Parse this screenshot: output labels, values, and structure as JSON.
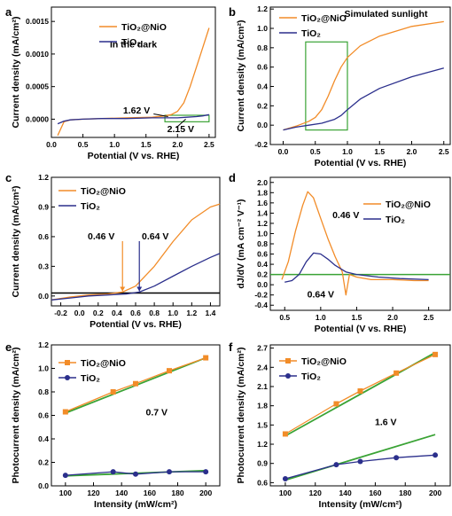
{
  "chart_data": [
    {
      "id": "a",
      "type": "line",
      "panel_label": "a",
      "xlabel": "Potential (V vs. RHE)",
      "ylabel": "Current density (mA/cm²)",
      "xlim": [
        0,
        2.6
      ],
      "ylim": [
        -0.00028,
        0.00172
      ],
      "xticks": [
        0.0,
        0.5,
        1.0,
        1.5,
        2.0,
        2.5
      ],
      "xtick_labels": [
        "0.0",
        "0.5",
        "1.0",
        "1.5",
        "2.0",
        "2.5"
      ],
      "yticks": [
        0,
        0.0005,
        0.001,
        0.0015
      ],
      "ytick_labels": [
        "0.0000",
        "0.0005",
        "0.0010",
        "0.0015"
      ],
      "series": [
        {
          "name": "TiO₂@NiO",
          "color": "#f28c28",
          "x": [
            0.1,
            0.2,
            0.3,
            0.5,
            0.8,
            1.2,
            1.6,
            1.8,
            1.9,
            2.0,
            2.1,
            2.2,
            2.3,
            2.4,
            2.5
          ],
          "y": [
            -0.00025,
            -4e-05,
            -1e-05,
            0.0,
            1e-05,
            2e-05,
            3e-05,
            5e-05,
            7e-05,
            0.00012,
            0.00025,
            0.0005,
            0.0008,
            0.0011,
            0.0014
          ]
        },
        {
          "name": "TiO₂",
          "color": "#2b2f8c",
          "x": [
            0.1,
            0.2,
            0.3,
            0.5,
            0.8,
            1.2,
            1.6,
            2.0,
            2.15,
            2.3,
            2.4,
            2.5
          ],
          "y": [
            -7e-05,
            -3e-05,
            -1e-05,
            0.0,
            1e-05,
            1e-05,
            2e-05,
            2e-05,
            3e-05,
            4e-05,
            5e-05,
            7e-05
          ]
        }
      ],
      "annotations": [
        {
          "text": "In the dark",
          "x": 1.3,
          "y": 0.0011
        },
        {
          "text": "1.62 V",
          "x": 1.35,
          "y": 9e-05
        },
        {
          "text": "2.15 V",
          "x": 2.05,
          "y": -0.0002
        }
      ],
      "highlight_box": {
        "x": [
          1.8,
          2.5
        ],
        "y": [
          -4e-05,
          6e-05
        ],
        "color": "#3aa335"
      }
    },
    {
      "id": "b",
      "type": "line",
      "panel_label": "b",
      "xlabel": "Potential (V vs. RHE)",
      "ylabel": "Current density (mA/cm²)",
      "xlim": [
        -0.2,
        2.6
      ],
      "ylim": [
        -0.2,
        1.22
      ],
      "xticks": [
        0.0,
        0.5,
        1.0,
        1.5,
        2.0,
        2.5
      ],
      "xtick_labels": [
        "0.0",
        "0.5",
        "1.0",
        "1.5",
        "2.0",
        "2.5"
      ],
      "yticks": [
        -0.2,
        0.0,
        0.2,
        0.4,
        0.6,
        0.8,
        1.0,
        1.2
      ],
      "ytick_labels": [
        "-0.2",
        "0.0",
        "0.2",
        "0.4",
        "0.6",
        "0.8",
        "1.0",
        "1.2"
      ],
      "series": [
        {
          "name": "TiO₂@NiO",
          "color": "#f28c28",
          "x": [
            0.0,
            0.2,
            0.4,
            0.5,
            0.6,
            0.7,
            0.8,
            0.9,
            1.0,
            1.2,
            1.5,
            2.0,
            2.5
          ],
          "y": [
            -0.05,
            -0.01,
            0.04,
            0.08,
            0.16,
            0.3,
            0.46,
            0.6,
            0.7,
            0.82,
            0.92,
            1.02,
            1.07
          ]
        },
        {
          "name": "TiO₂",
          "color": "#2b2f8c",
          "x": [
            0.0,
            0.2,
            0.4,
            0.6,
            0.8,
            0.9,
            1.0,
            1.2,
            1.5,
            2.0,
            2.5
          ],
          "y": [
            -0.05,
            -0.02,
            0.0,
            0.02,
            0.06,
            0.1,
            0.16,
            0.27,
            0.38,
            0.5,
            0.59
          ]
        }
      ],
      "annotations": [
        {
          "text": "Simulated sunlight",
          "x": 1.6,
          "y": 1.12
        }
      ],
      "highlight_box": {
        "x": [
          0.35,
          1.0
        ],
        "y": [
          -0.05,
          0.86
        ],
        "color": "#3aa335"
      }
    },
    {
      "id": "c",
      "type": "line",
      "panel_label": "c",
      "xlabel": "Potential (V vs. RHE)",
      "ylabel": "Current density (mA/cm²)",
      "xlim": [
        -0.3,
        1.5
      ],
      "ylim": [
        -0.1,
        1.2
      ],
      "xticks": [
        -0.2,
        0.0,
        0.2,
        0.4,
        0.6,
        0.8,
        1.0,
        1.2,
        1.4
      ],
      "xtick_labels": [
        "-0.2",
        "0.0",
        "0.2",
        "0.4",
        "0.6",
        "0.8",
        "1.0",
        "1.2",
        "1.4"
      ],
      "yticks": [
        0.0,
        0.3,
        0.6,
        0.9,
        1.2
      ],
      "ytick_labels": [
        "0.0",
        "0.3",
        "0.6",
        "0.9",
        "1.2"
      ],
      "series": [
        {
          "name": "TiO₂@NiO",
          "color": "#f28c28",
          "x": [
            -0.3,
            -0.1,
            0.1,
            0.3,
            0.46,
            0.6,
            0.8,
            1.0,
            1.2,
            1.4,
            1.5
          ],
          "y": [
            -0.04,
            -0.01,
            0.01,
            0.02,
            0.04,
            0.1,
            0.3,
            0.55,
            0.77,
            0.9,
            0.93
          ]
        },
        {
          "name": "TiO₂",
          "color": "#2b2f8c",
          "x": [
            -0.3,
            -0.1,
            0.1,
            0.3,
            0.5,
            0.64,
            0.8,
            1.0,
            1.2,
            1.4,
            1.5
          ],
          "y": [
            -0.04,
            -0.02,
            0.0,
            0.01,
            0.02,
            0.04,
            0.1,
            0.2,
            0.3,
            0.39,
            0.43
          ]
        }
      ],
      "baseline_y": 0.03,
      "markers": [
        {
          "label": "0.46 V",
          "x": 0.46,
          "color": "#f28c28"
        },
        {
          "label": "0.64 V",
          "x": 0.64,
          "color": "#2b2f8c"
        }
      ]
    },
    {
      "id": "d",
      "type": "line",
      "panel_label": "d",
      "xlabel": "Potential (V vs. RHE)",
      "ylabel": "dJ/dV (mA cm⁻² V⁻¹)",
      "xlim": [
        0.3,
        2.8
      ],
      "ylim": [
        -0.5,
        2.1
      ],
      "xticks": [
        0.5,
        1.0,
        1.5,
        2.0,
        2.5
      ],
      "xtick_labels": [
        "0.5",
        "1.0",
        "1.5",
        "2.0",
        "2.5"
      ],
      "yticks": [
        -0.4,
        -0.2,
        0.0,
        0.2,
        0.4,
        0.6,
        0.8,
        1.0,
        1.2,
        1.4,
        1.6,
        1.8,
        2.0
      ],
      "ytick_labels": [
        "-0.4",
        "-0.2",
        "0.0",
        "0.2",
        "0.4",
        "0.6",
        "0.8",
        "1.0",
        "1.2",
        "1.4",
        "1.6",
        "1.8",
        "2.0"
      ],
      "series": [
        {
          "name": "TiO₂@NiO",
          "color": "#f28c28",
          "x": [
            0.46,
            0.55,
            0.65,
            0.75,
            0.82,
            0.9,
            1.0,
            1.1,
            1.2,
            1.3,
            1.35,
            1.4,
            1.5,
            1.7,
            2.0,
            2.3,
            2.5
          ],
          "y": [
            0.1,
            0.45,
            1.05,
            1.55,
            1.82,
            1.7,
            1.3,
            0.9,
            0.55,
            0.25,
            -0.2,
            0.2,
            0.15,
            0.1,
            0.1,
            0.08,
            0.08
          ]
        },
        {
          "name": "TiO₂",
          "color": "#2b2f8c",
          "x": [
            0.5,
            0.6,
            0.7,
            0.8,
            0.9,
            1.0,
            1.1,
            1.2,
            1.35,
            1.5,
            1.8,
            2.1,
            2.5
          ],
          "y": [
            0.05,
            0.08,
            0.2,
            0.45,
            0.62,
            0.6,
            0.5,
            0.38,
            0.25,
            0.2,
            0.15,
            0.12,
            0.1
          ]
        }
      ],
      "baseline_y": 0.2,
      "annotations": [
        {
          "text": "0.46 V",
          "x": 1.35,
          "y": 1.3
        },
        {
          "text": "0.64 V",
          "x": 1.0,
          "y": -0.25
        }
      ]
    },
    {
      "id": "e",
      "type": "line",
      "panel_label": "e",
      "xlabel": "Intensity (mW/cm²)",
      "ylabel": "Photocurrent density (mA/cm²)",
      "xlim": [
        90,
        210
      ],
      "ylim": [
        0.0,
        1.2
      ],
      "xticks": [
        100,
        120,
        140,
        160,
        180,
        200
      ],
      "xtick_labels": [
        "100",
        "120",
        "140",
        "160",
        "180",
        "200"
      ],
      "yticks": [
        0.0,
        0.2,
        0.4,
        0.6,
        0.8,
        1.0,
        1.2
      ],
      "ytick_labels": [
        "0.0",
        "0.2",
        "0.4",
        "0.6",
        "0.8",
        "1.0",
        "1.2"
      ],
      "series": [
        {
          "name": "TiO₂@NiO",
          "color": "#f28c28",
          "marker": "square",
          "x": [
            100,
            134,
            150,
            174,
            200
          ],
          "y": [
            0.63,
            0.8,
            0.87,
            0.98,
            1.09
          ]
        },
        {
          "name": "TiO₂",
          "color": "#2b2f8c",
          "marker": "circle",
          "x": [
            100,
            134,
            150,
            174,
            200
          ],
          "y": [
            0.09,
            0.12,
            0.1,
            0.12,
            0.12
          ]
        }
      ],
      "fits": [
        {
          "x": [
            100,
            200
          ],
          "y": [
            0.62,
            1.09
          ]
        },
        {
          "x": [
            100,
            200
          ],
          "y": [
            0.085,
            0.13
          ]
        }
      ],
      "fit_color": "#3aa335",
      "annotations": [
        {
          "text": "0.7 V",
          "x": 165,
          "y": 0.6
        }
      ]
    },
    {
      "id": "f",
      "type": "line",
      "panel_label": "f",
      "xlabel": "Intensity (mW/cm²)",
      "ylabel": "Photocurrent density (mA/cm²)",
      "xlim": [
        90,
        210
      ],
      "ylim": [
        0.55,
        2.75
      ],
      "xticks": [
        100,
        120,
        140,
        160,
        180,
        200
      ],
      "xtick_labels": [
        "100",
        "120",
        "140",
        "160",
        "180",
        "200"
      ],
      "yticks": [
        0.6,
        0.9,
        1.2,
        1.5,
        1.8,
        2.1,
        2.4,
        2.7
      ],
      "ytick_labels": [
        "0.6",
        "0.9",
        "1.2",
        "1.5",
        "1.8",
        "2.1",
        "2.4",
        "2.7"
      ],
      "series": [
        {
          "name": "TiO₂@NiO",
          "color": "#f28c28",
          "marker": "square",
          "x": [
            100,
            134,
            150,
            174,
            200
          ],
          "y": [
            1.36,
            1.83,
            2.03,
            2.31,
            2.6
          ]
        },
        {
          "name": "TiO₂",
          "color": "#2b2f8c",
          "marker": "circle",
          "x": [
            100,
            134,
            150,
            174,
            200
          ],
          "y": [
            0.66,
            0.88,
            0.93,
            0.99,
            1.03
          ]
        }
      ],
      "fits": [
        {
          "x": [
            100,
            200
          ],
          "y": [
            1.33,
            2.63
          ]
        },
        {
          "x": [
            100,
            200
          ],
          "y": [
            0.64,
            1.35
          ]
        }
      ],
      "fit_color": "#3aa335",
      "annotations": [
        {
          "text": "1.6 V",
          "x": 167,
          "y": 1.5
        }
      ]
    }
  ]
}
